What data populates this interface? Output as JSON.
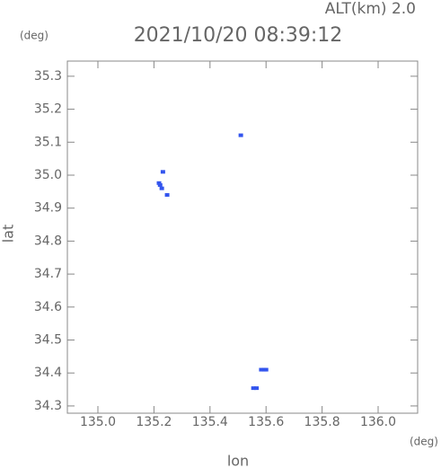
{
  "chart_data": {
    "type": "scatter",
    "title": "2021/10/20 08:39:12",
    "subtitle": "ALT(km) 2.0",
    "x_label": "lon",
    "y_label": "lat",
    "x_unit": "(deg)",
    "y_unit": "(deg)",
    "xlim": [
      134.891,
      136.141
    ],
    "ylim": [
      34.278,
      35.346
    ],
    "xticks": [
      {
        "value": 135.0,
        "label": "135.0"
      },
      135.2,
      135.4,
      135.6,
      135.8,
      {
        "value": 136.0,
        "label": "136.0"
      }
    ],
    "yticks": [
      35.3,
      35.2,
      35.1,
      {
        "value": 35.0,
        "label": "35.0"
      },
      34.9,
      34.8,
      34.7,
      34.6,
      34.5,
      34.4,
      34.3
    ],
    "series": [
      {
        "color": "#3355ee",
        "x": [
          135.51,
          135.232,
          135.218,
          135.222,
          135.228,
          135.247,
          135.583,
          135.593,
          135.6,
          135.555,
          135.566
        ],
        "y": [
          35.121,
          35.01,
          34.976,
          34.97,
          34.96,
          34.94,
          34.41,
          34.41,
          34.41,
          34.354,
          34.354
        ]
      }
    ]
  }
}
